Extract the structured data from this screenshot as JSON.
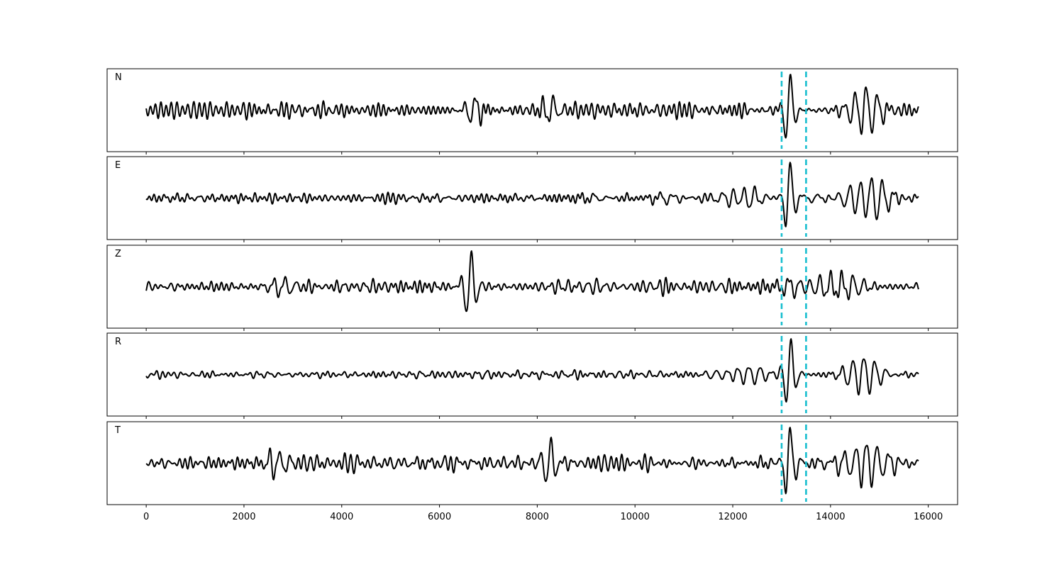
{
  "chart_data": {
    "type": "line",
    "title": "",
    "xlabel": "",
    "ylabel": "",
    "xlim": [
      -800,
      16600
    ],
    "x_range": [
      0,
      15800
    ],
    "xticks": [
      0,
      2000,
      4000,
      6000,
      8000,
      10000,
      12000,
      14000,
      16000
    ],
    "xtick_labels": [
      "0",
      "2000",
      "4000",
      "6000",
      "8000",
      "10000",
      "12000",
      "14000",
      "16000"
    ],
    "pick_lines": [
      13000,
      13500
    ],
    "pick_line_color": "#17becf",
    "trace_color": "#000000",
    "panels": [
      {
        "label": "N",
        "seed": 11,
        "base_amplitude": 0.28,
        "bursts": [
          {
            "x": 13150,
            "amp": 0.95,
            "width": 130
          },
          {
            "x": 6700,
            "amp": 0.35,
            "width": 200
          },
          {
            "x": 8300,
            "amp": 0.35,
            "width": 220
          },
          {
            "x": 14700,
            "amp": 0.55,
            "width": 400
          }
        ]
      },
      {
        "label": "E",
        "seed": 23,
        "base_amplitude": 0.22,
        "bursts": [
          {
            "x": 13150,
            "amp": 1.0,
            "width": 130
          },
          {
            "x": 14800,
            "amp": 0.55,
            "width": 500
          },
          {
            "x": 12200,
            "amp": 0.3,
            "width": 400
          }
        ]
      },
      {
        "label": "Z",
        "seed": 37,
        "base_amplitude": 0.3,
        "bursts": [
          {
            "x": 6620,
            "amp": 1.0,
            "width": 160
          },
          {
            "x": 13100,
            "amp": 0.35,
            "width": 250
          },
          {
            "x": 14200,
            "amp": 0.4,
            "width": 500
          },
          {
            "x": 2800,
            "amp": 0.3,
            "width": 300
          }
        ]
      },
      {
        "label": "R",
        "seed": 51,
        "base_amplitude": 0.2,
        "bursts": [
          {
            "x": 13160,
            "amp": 1.0,
            "width": 140
          },
          {
            "x": 14650,
            "amp": 0.55,
            "width": 450
          },
          {
            "x": 12300,
            "amp": 0.25,
            "width": 500
          }
        ]
      },
      {
        "label": "T",
        "seed": 67,
        "base_amplitude": 0.3,
        "bursts": [
          {
            "x": 13150,
            "amp": 0.95,
            "width": 130
          },
          {
            "x": 8250,
            "amp": 0.6,
            "width": 200
          },
          {
            "x": 14700,
            "amp": 0.6,
            "width": 450
          },
          {
            "x": 2700,
            "amp": 0.3,
            "width": 300
          }
        ]
      }
    ]
  }
}
